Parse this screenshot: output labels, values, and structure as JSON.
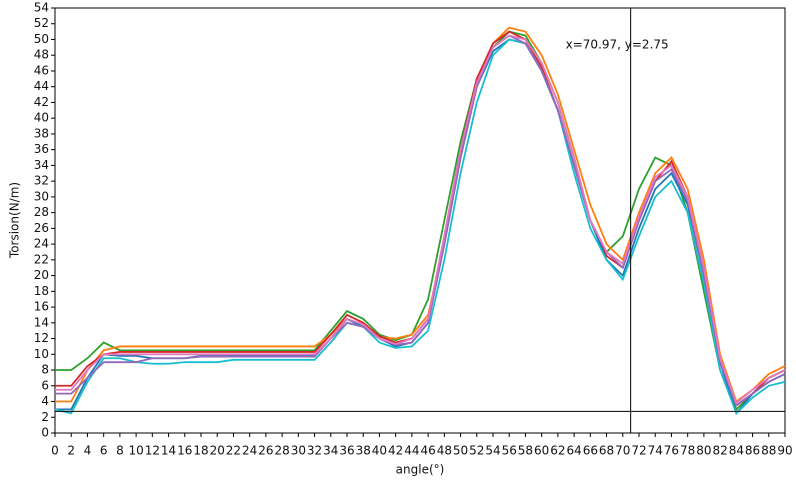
{
  "chart_data": {
    "type": "line",
    "y_label": "Torsion(N/m)",
    "x_label": "angle(°)",
    "x": [
      0,
      2,
      4,
      6,
      8,
      10,
      12,
      14,
      16,
      18,
      20,
      22,
      24,
      26,
      28,
      30,
      32,
      34,
      36,
      38,
      40,
      42,
      44,
      46,
      48,
      50,
      52,
      54,
      56,
      58,
      60,
      62,
      64,
      66,
      68,
      70,
      72,
      74,
      76,
      78,
      80,
      82,
      84,
      86,
      88,
      90
    ],
    "series": [
      {
        "color": "#2ca02c",
        "values": [
          8,
          8,
          9.5,
          11.5,
          10.5,
          10.5,
          10.5,
          10.5,
          10.5,
          10.5,
          10.5,
          10.5,
          10.5,
          10.5,
          10.5,
          10.5,
          10.5,
          13,
          15.5,
          14.5,
          12.5,
          11.8,
          12.5,
          17,
          27,
          37,
          45,
          49,
          51,
          50.5,
          47,
          42,
          35,
          27,
          23,
          25,
          31,
          35,
          34,
          28,
          18,
          8,
          3,
          5,
          7,
          8
        ]
      },
      {
        "color": "#ff7f0e",
        "values": [
          4,
          4,
          8,
          10.5,
          11,
          11,
          11,
          11,
          11,
          11,
          11,
          11,
          11,
          11,
          11,
          11,
          11,
          12.5,
          14.5,
          13.5,
          12.2,
          12,
          12.5,
          15,
          24,
          35,
          44,
          49.5,
          51.5,
          51,
          48,
          43,
          36,
          29,
          24,
          22,
          28,
          33,
          35,
          31,
          22,
          10,
          4,
          5.5,
          7.5,
          8.5
        ]
      },
      {
        "color": "#d62728",
        "values": [
          6,
          6,
          8.5,
          10,
          10.3,
          10.3,
          10.3,
          10.3,
          10.3,
          10.3,
          10.3,
          10.3,
          10.3,
          10.3,
          10.3,
          10.3,
          10.3,
          12.5,
          15,
          14,
          12.3,
          11.5,
          12,
          14.5,
          25,
          36,
          45,
          49.5,
          51,
          50,
          46.5,
          41,
          34,
          27,
          22.5,
          21,
          27,
          32,
          34.5,
          30,
          20,
          9,
          3.5,
          5,
          7,
          8
        ]
      },
      {
        "color": "#1f77b4",
        "values": [
          3,
          3,
          7,
          10,
          9.8,
          9.8,
          9.5,
          9.5,
          9.5,
          9.8,
          9.8,
          9.8,
          9.8,
          9.8,
          9.8,
          9.8,
          9.8,
          12,
          14.5,
          13.5,
          12,
          11,
          11.5,
          14,
          24,
          35,
          44,
          48.5,
          50,
          49.5,
          46,
          41,
          34,
          27,
          22,
          20,
          26,
          31,
          33,
          29,
          20,
          9,
          2.5,
          5,
          6.5,
          7.5
        ]
      },
      {
        "color": "#17becf",
        "values": [
          3,
          2.5,
          6.5,
          9.5,
          9.5,
          9,
          8.8,
          8.8,
          9,
          9,
          9,
          9.3,
          9.3,
          9.3,
          9.3,
          9.3,
          9.3,
          11.5,
          14,
          13.5,
          11.5,
          10.8,
          11,
          13,
          22,
          33,
          42,
          48,
          50,
          49.5,
          46,
          41,
          33,
          26,
          22,
          19.5,
          25,
          30,
          32,
          28,
          19,
          8,
          2.5,
          4.5,
          6,
          6.5
        ]
      },
      {
        "color": "#9467bd",
        "values": [
          5,
          5,
          7,
          9,
          9,
          9,
          9.5,
          9.5,
          9.5,
          9.7,
          9.7,
          9.7,
          9.7,
          9.7,
          9.7,
          9.7,
          9.7,
          12,
          14,
          13.5,
          12,
          11.2,
          11.5,
          14,
          24,
          35,
          44,
          49,
          50.5,
          49.5,
          46,
          41,
          34,
          27,
          23,
          21,
          27,
          32,
          33.5,
          29.5,
          20,
          9,
          3.5,
          5,
          6.5,
          7.5
        ]
      },
      {
        "color": "#e377c2",
        "values": [
          5.5,
          5.5,
          8,
          10,
          10,
          10,
          10,
          10,
          10,
          10,
          10,
          10,
          10,
          10,
          10,
          10,
          10,
          12,
          14.5,
          13.8,
          12,
          11.3,
          12,
          14.5,
          25,
          36,
          44.5,
          49,
          50.5,
          50,
          47,
          42,
          35,
          27,
          23,
          21.5,
          27.5,
          32.5,
          34,
          30,
          21,
          9.5,
          3.8,
          5.5,
          7,
          8
        ]
      }
    ],
    "xlim": [
      0,
      90
    ],
    "ylim": [
      0,
      54
    ],
    "xticks": [
      0,
      2,
      4,
      6,
      8,
      10,
      12,
      14,
      16,
      18,
      20,
      22,
      24,
      26,
      28,
      30,
      32,
      34,
      36,
      38,
      40,
      42,
      44,
      46,
      48,
      50,
      52,
      54,
      56,
      58,
      60,
      62,
      64,
      66,
      68,
      70,
      72,
      74,
      76,
      78,
      80,
      82,
      84,
      86,
      88,
      90
    ],
    "yticks": [
      0,
      2,
      4,
      6,
      8,
      10,
      12,
      14,
      16,
      18,
      20,
      22,
      24,
      26,
      28,
      30,
      32,
      34,
      36,
      38,
      40,
      42,
      44,
      46,
      48,
      50,
      52,
      54
    ],
    "crosshair": {
      "x": 70.97,
      "y": 2.75,
      "label": "x=70.97, y=2.75"
    }
  }
}
